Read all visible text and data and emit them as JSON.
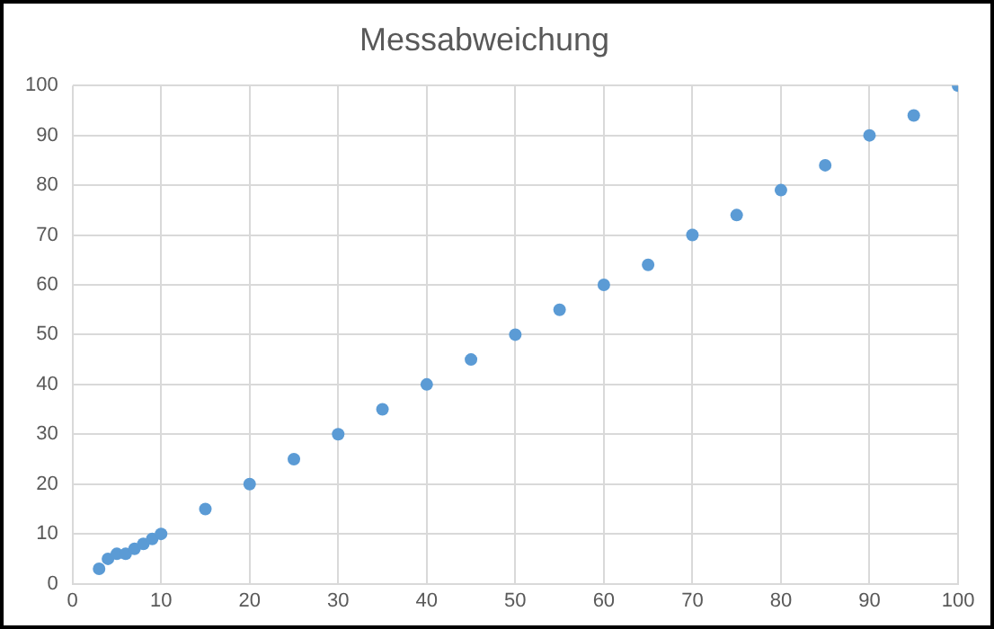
{
  "chart_data": {
    "type": "scatter",
    "title": "Messabweichung",
    "x": [
      3,
      4,
      5,
      6,
      7,
      8,
      9,
      10,
      15,
      20,
      25,
      30,
      35,
      40,
      45,
      50,
      55,
      60,
      65,
      70,
      75,
      80,
      85,
      90,
      95,
      100
    ],
    "series": [
      {
        "color": "#5b9bd5",
        "values": [
          3,
          5,
          6,
          6,
          7,
          8,
          9,
          10,
          15,
          20,
          25,
          30,
          35,
          40,
          45,
          50,
          55,
          60,
          64,
          70,
          74,
          79,
          84,
          90,
          94,
          100
        ]
      }
    ],
    "xlim": [
      0,
      100
    ],
    "xticks": [
      0,
      10,
      20,
      30,
      40,
      50,
      60,
      70,
      80,
      90,
      100
    ],
    "ylim": [
      0,
      100
    ],
    "yticks": [
      0,
      10,
      20,
      30,
      40,
      50,
      60,
      70,
      80,
      90,
      100
    ],
    "grid": true,
    "legend": false,
    "marker": "circle"
  }
}
